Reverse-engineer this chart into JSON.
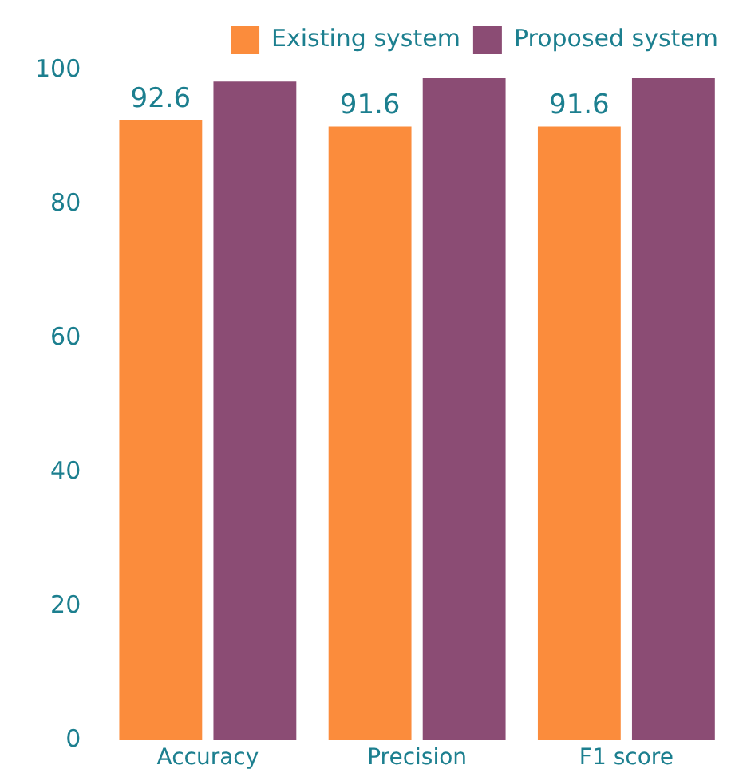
{
  "chart_data": {
    "type": "bar",
    "categories": [
      "Accuracy",
      "Precision",
      "F1 score"
    ],
    "series": [
      {
        "name": "Existing system",
        "color": "#fb8c3c",
        "values": [
          92.6,
          91.6,
          91.6
        ],
        "value_labels": [
          "92.6",
          "91.6",
          "91.6"
        ]
      },
      {
        "name": "Proposed system",
        "color": "#8b4c74",
        "values": [
          98.3,
          98.8,
          98.8
        ]
      }
    ],
    "ylim": [
      0,
      100
    ],
    "yticks": [
      0,
      20,
      40,
      60,
      80,
      100
    ],
    "grid": false,
    "legend": "top"
  }
}
